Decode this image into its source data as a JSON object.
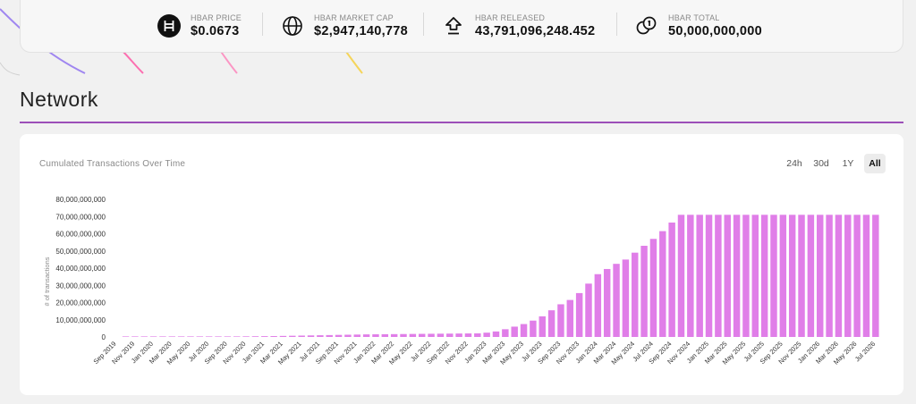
{
  "stats": [
    {
      "label": "HBAR PRICE",
      "value": "$0.0673",
      "icon": "hbar-logo-icon"
    },
    {
      "label": "HBAR MARKET CAP",
      "value": "$2,947,140,778",
      "icon": "globe-icon"
    },
    {
      "label": "HBAR RELEASED",
      "value": "43,791,096,248.452",
      "icon": "upload-arrow-icon"
    },
    {
      "label": "HBAR TOTAL",
      "value": "50,000,000,000",
      "icon": "coins-icon"
    }
  ],
  "section": {
    "title": "Network"
  },
  "chart": {
    "title": "Cumulated Transactions Over Time",
    "ranges": [
      "24h",
      "30d",
      "1Y",
      "All"
    ],
    "active_range": "All"
  },
  "colors": {
    "accent": "#9c4fb8",
    "bar": "#e07ee8"
  },
  "chart_data": {
    "type": "bar",
    "title": "Cumulated Transactions Over Time",
    "xlabel": "",
    "ylabel": "# of transactions",
    "ylim": [
      0,
      80000000000
    ],
    "yticks": [
      "0",
      "10,000,000,000",
      "20,000,000,000",
      "30,000,000,000",
      "40,000,000,000",
      "50,000,000,000",
      "60,000,000,000",
      "70,000,000,000",
      "80,000,000,000"
    ],
    "categories": [
      "Sep 2019",
      "Oct 2019",
      "Nov 2019",
      "Dec 2019",
      "Jan 2020",
      "Feb 2020",
      "Mar 2020",
      "Apr 2020",
      "May 2020",
      "Jun 2020",
      "Jul 2020",
      "Aug 2020",
      "Sep 2020",
      "Oct 2020",
      "Nov 2020",
      "Dec 2020",
      "Jan 2021",
      "Feb 2021",
      "Mar 2021",
      "Apr 2021",
      "May 2021",
      "Jun 2021",
      "Jul 2021",
      "Aug 2021",
      "Sep 2021",
      "Oct 2021",
      "Nov 2021",
      "Dec 2021",
      "Jan 2022",
      "Feb 2022",
      "Mar 2022",
      "Apr 2022",
      "May 2022",
      "Jun 2022",
      "Jul 2022",
      "Aug 2022",
      "Sep 2022",
      "Oct 2022",
      "Nov 2022",
      "Dec 2022",
      "Jan 2023",
      "Feb 2023",
      "Mar 2023",
      "Apr 2023",
      "May 2023",
      "Jun 2023",
      "Jul 2023",
      "Aug 2023",
      "Sep 2023",
      "Oct 2023",
      "Nov 2023",
      "Dec 2023",
      "Jan 2024",
      "Feb 2024",
      "Mar 2024",
      "Apr 2024",
      "May 2024",
      "Jun 2024",
      "Jul 2024",
      "Aug 2024",
      "Sep 2024",
      "Oct 2024",
      "Nov 2024",
      "Dec 2024",
      "Jan 2025",
      "Feb 2025",
      "Mar 2025",
      "Apr 2025",
      "May 2025",
      "Jun 2025",
      "Jul 2025",
      "Aug 2025",
      "Sep 2025",
      "Oct 2025",
      "Nov 2025",
      "Dec 2025",
      "Jan 2026",
      "Feb 2026",
      "Mar 2026",
      "Apr 2026",
      "May 2026",
      "Jun 2026",
      "Jul 2026"
    ],
    "tick_labels": [
      "Sep 2019",
      "Nov 2019",
      "Jan 2020",
      "Mar 2020",
      "May 2020",
      "Jul 2020",
      "Sep 2020",
      "Nov 2020",
      "Jan 2021",
      "Mar 2021",
      "May 2021",
      "Jul 2021",
      "Sep 2021",
      "Nov 2021",
      "Jan 2022",
      "Mar 2022",
      "May 2022",
      "Jul 2022",
      "Sep 2022",
      "Nov 2022",
      "Jan 2023",
      "Mar 2023",
      "May 2023",
      "Jul 2023",
      "Sep 2023",
      "Nov 2023",
      "Jan 2024",
      "Mar 2024",
      "May 2024",
      "Jul 2024",
      "Sep 2024",
      "Nov 2024",
      "Jan 2025",
      "Mar 2025",
      "May 2025",
      "Jul 2025",
      "Sep 2025",
      "Nov 2025",
      "Jan 2026",
      "Mar 2026",
      "May 2026",
      "Jul 2026"
    ],
    "values": [
      0,
      20000000,
      40000000,
      60000000,
      80000000,
      100000000,
      120000000,
      140000000,
      160000000,
      180000000,
      200000000,
      220000000,
      260000000,
      300000000,
      350000000,
      400000000,
      450000000,
      500000000,
      600000000,
      700000000,
      800000000,
      900000000,
      1000000000,
      1100000000,
      1200000000,
      1300000000,
      1400000000,
      1500000000,
      1550000000,
      1600000000,
      1650000000,
      1700000000,
      1750000000,
      1800000000,
      1850000000,
      1900000000,
      1950000000,
      2000000000,
      2050000000,
      2100000000,
      2500000000,
      3200000000,
      4500000000,
      6000000000,
      7500000000,
      9500000000,
      12000000000,
      15500000000,
      19000000000,
      21500000000,
      25500000000,
      31000000000,
      36500000000,
      39500000000,
      42500000000,
      45000000000,
      49000000000,
      53000000000,
      57000000000,
      61500000000,
      66500000000,
      71000000000,
      71000000000,
      71000000000,
      71000000000,
      71000000000,
      71000000000,
      71000000000,
      71000000000,
      71000000000,
      71000000000,
      71000000000,
      71000000000,
      71000000000,
      71000000000,
      71000000000,
      71000000000,
      71000000000,
      71000000000,
      71000000000,
      71000000000,
      71000000000,
      71000000000
    ],
    "grid": false,
    "legend": "none"
  }
}
